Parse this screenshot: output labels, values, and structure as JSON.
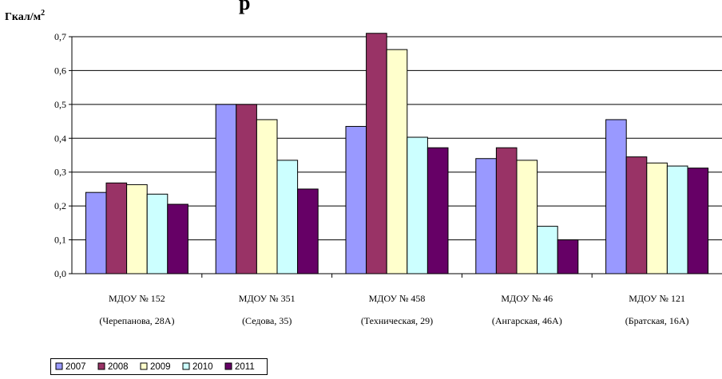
{
  "chart_data": {
    "type": "bar",
    "title_fragment": "р",
    "unit_label": "Гкал/м",
    "unit_superscript": "2",
    "categories": [
      {
        "line1": "МДОУ № 152",
        "line2": "(Черепанова, 28А)"
      },
      {
        "line1": "МДОУ № 351",
        "line2": "(Седова, 35)"
      },
      {
        "line1": "МДОУ № 458",
        "line2": "(Техническая, 29)"
      },
      {
        "line1": "МДОУ № 46",
        "line2": "(Ангарская, 46А)"
      },
      {
        "line1": "МДОУ № 121",
        "line2": "(Братская, 16А)"
      }
    ],
    "series": [
      {
        "name": "2007",
        "color": "#9999ff",
        "values": [
          0.24,
          0.5,
          0.435,
          0.34,
          0.455
        ]
      },
      {
        "name": "2008",
        "color": "#993366",
        "values": [
          0.268,
          0.5,
          0.71,
          0.372,
          0.345
        ]
      },
      {
        "name": "2009",
        "color": "#ffffcc",
        "values": [
          0.263,
          0.455,
          0.662,
          0.335,
          0.327
        ]
      },
      {
        "name": "2010",
        "color": "#ccffff",
        "values": [
          0.235,
          0.335,
          0.403,
          0.14,
          0.318
        ]
      },
      {
        "name": "2011",
        "color": "#660066",
        "values": [
          0.205,
          0.25,
          0.372,
          0.1,
          0.312
        ]
      }
    ],
    "y_ticks": [
      "0,0",
      "0,1",
      "0,2",
      "0,3",
      "0,4",
      "0,5",
      "0,6",
      "0,7"
    ],
    "ylim": [
      0,
      0.7
    ],
    "grid": true,
    "legend_position": "bottom-left"
  }
}
